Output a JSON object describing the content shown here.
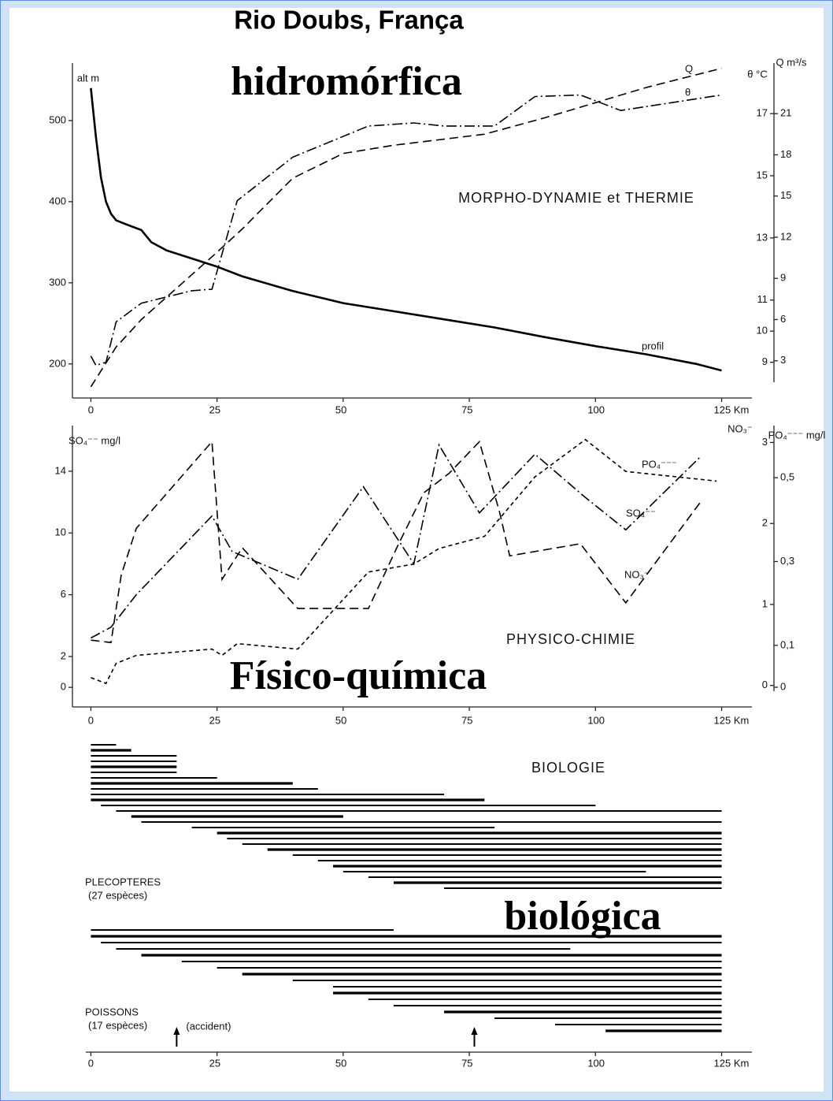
{
  "title": "Rio Doubs, França",
  "overlays": [
    "hidromórfica",
    "Físico-química",
    "biológica"
  ],
  "chart_data": [
    {
      "type": "line",
      "label": "MORPHO-DYNAMIE et THERMIE",
      "xlim": [
        -1,
        131
      ],
      "xticks": [
        0,
        25,
        50,
        75,
        100,
        {
          "value": 125,
          "label": "125  Km"
        }
      ],
      "ylabel": "alt m",
      "y2label": "θ °C",
      "y3label": "Q m³/s",
      "ylim": [
        160,
        566
      ],
      "yticks": [
        200,
        300,
        400,
        500
      ],
      "y2lim": [
        7.9,
        18.5
      ],
      "y2ticks": [
        9,
        10,
        11,
        13,
        15,
        17
      ],
      "y3lim": [
        0.4,
        24.4
      ],
      "y3ticks": [
        3,
        6,
        9,
        12,
        15,
        18,
        21
      ],
      "series": [
        {
          "name": "profil",
          "axis": "y",
          "line_style": "solid",
          "color": "#000",
          "x": [
            0,
            1,
            2,
            3,
            4,
            5,
            7,
            10,
            12,
            15,
            20,
            25,
            30,
            40,
            50,
            60,
            70,
            80,
            90,
            100,
            110,
            120,
            125
          ],
          "values": [
            540,
            480,
            430,
            400,
            385,
            377,
            372,
            365,
            350,
            340,
            330,
            320,
            308,
            290,
            275,
            265,
            255,
            245,
            233,
            222,
            212,
            200,
            192
          ]
        },
        {
          "name": "Q",
          "axis": "y3",
          "line_style": "dashed",
          "color": "#000",
          "x": [
            0,
            5,
            10,
            25,
            30,
            40,
            50,
            60,
            78,
            90,
            100,
            110,
            125
          ],
          "values": [
            1.1,
            4,
            6,
            10.9,
            12.6,
            16.3,
            18.1,
            18.7,
            19.5,
            20.7,
            21.8,
            22.9,
            24.3
          ]
        },
        {
          "name": "θ",
          "axis": "y2",
          "line_style": "dashdot",
          "color": "#000",
          "x": [
            0,
            1,
            3,
            5,
            10,
            20,
            24,
            29,
            40,
            55,
            64,
            70,
            80,
            88,
            97,
            105,
            125
          ],
          "values": [
            9.2,
            8.9,
            9,
            10.3,
            10.9,
            11.3,
            11.35,
            14.2,
            15.6,
            16.6,
            16.7,
            16.6,
            16.6,
            17.55,
            17.6,
            17.1,
            17.6
          ]
        }
      ]
    },
    {
      "type": "line",
      "label": "PHYSICO-CHIMIE",
      "xlim": [
        -1,
        131
      ],
      "xticks": [
        0,
        25,
        50,
        75,
        100,
        {
          "value": 125,
          "label": "125  Km"
        }
      ],
      "ylabel": "SO₄⁻⁻ mg/l",
      "y2label": "NO₃⁻",
      "y3label": "PO₄⁻⁻⁻ mg/l",
      "ylim": [
        -0.4,
        16.7
      ],
      "yticks": [
        0,
        2,
        6,
        10,
        14
      ],
      "y2lim": [
        -0.1,
        3.16
      ],
      "y2ticks": [
        0,
        1,
        2,
        3
      ],
      "y3lim": [
        -0.015,
        0.615
      ],
      "y3ticks": [
        0,
        {
          "value": 0.1,
          "label": "0,1"
        },
        {
          "value": 0.3,
          "label": "0,3"
        },
        {
          "value": 0.5,
          "label": "0,5"
        }
      ],
      "series": [
        {
          "name": "SO₄⁻⁻",
          "axis": "y",
          "line_style": "dashdot",
          "color": "#000",
          "x": [
            0,
            4,
            9,
            24,
            28,
            41,
            54,
            64,
            69,
            77,
            88,
            98,
            106,
            121
          ],
          "values": [
            3.2,
            3.9,
            6,
            11.1,
            8.8,
            7,
            13,
            8,
            15.7,
            11.3,
            15.1,
            12.3,
            10.2,
            15
          ]
        },
        {
          "name": "NO₃⁻",
          "axis": "y2",
          "line_style": "dashed",
          "color": "#000",
          "x": [
            0,
            4,
            6,
            9,
            24,
            26,
            30,
            41,
            55,
            61,
            66,
            71,
            77,
            81,
            83,
            97,
            106,
            121
          ],
          "values": [
            0.56,
            0.53,
            1.36,
            1.94,
            3.01,
            1.31,
            1.7,
            0.95,
            0.95,
            1.75,
            2.38,
            2.62,
            3.01,
            2.14,
            1.6,
            1.75,
            1.02,
            2.28
          ]
        },
        {
          "name": "PO₄⁻⁻⁻",
          "axis": "y3",
          "line_style": "shortdash",
          "color": "#000",
          "x": [
            0,
            3,
            5,
            9,
            24,
            26,
            29,
            41,
            55,
            64,
            69,
            78,
            88,
            98,
            106,
            124
          ],
          "values": [
            0.023,
            0.009,
            0.057,
            0.076,
            0.091,
            0.076,
            0.104,
            0.091,
            0.275,
            0.294,
            0.331,
            0.36,
            0.502,
            0.591,
            0.515,
            0.492
          ]
        }
      ]
    },
    {
      "type": "range",
      "label": "BIOLOGIE",
      "xlim": [
        -1,
        131
      ],
      "xticks": [
        0,
        25,
        50,
        75,
        100,
        {
          "value": 125,
          "label": "125  Km"
        }
      ],
      "arrows_x": [
        17,
        76
      ],
      "arrow_label": "(accident)",
      "series": [
        {
          "name": "PLECOPTERES",
          "subtitle": "(27 espèces)",
          "color": "#000",
          "ranges": [
            [
              0,
              5
            ],
            [
              0,
              8
            ],
            [
              0,
              17
            ],
            [
              0,
              17
            ],
            [
              0,
              17
            ],
            [
              0,
              17
            ],
            [
              0,
              25
            ],
            [
              0,
              40
            ],
            [
              0,
              45
            ],
            [
              0,
              70
            ],
            [
              0,
              78
            ],
            [
              2,
              100
            ],
            [
              5,
              125
            ],
            [
              8,
              50
            ],
            [
              10,
              125
            ],
            [
              20,
              80
            ],
            [
              25,
              125
            ],
            [
              27,
              125
            ],
            [
              30,
              125
            ],
            [
              35,
              125
            ],
            [
              40,
              125
            ],
            [
              45,
              125
            ],
            [
              48,
              125
            ],
            [
              50,
              110
            ],
            [
              55,
              125
            ],
            [
              60,
              125
            ],
            [
              70,
              125
            ]
          ]
        },
        {
          "name": "POISSONS",
          "subtitle": "(17 espèces)",
          "color": "#000",
          "ranges": [
            [
              0,
              60
            ],
            [
              0,
              125
            ],
            [
              2,
              125
            ],
            [
              5,
              95
            ],
            [
              10,
              125
            ],
            [
              18,
              125
            ],
            [
              25,
              125
            ],
            [
              30,
              125
            ],
            [
              40,
              125
            ],
            [
              48,
              125
            ],
            [
              48,
              125
            ],
            [
              55,
              125
            ],
            [
              60,
              125
            ],
            [
              70,
              125
            ],
            [
              80,
              125
            ],
            [
              92,
              125
            ],
            [
              102,
              125
            ]
          ]
        }
      ]
    }
  ]
}
